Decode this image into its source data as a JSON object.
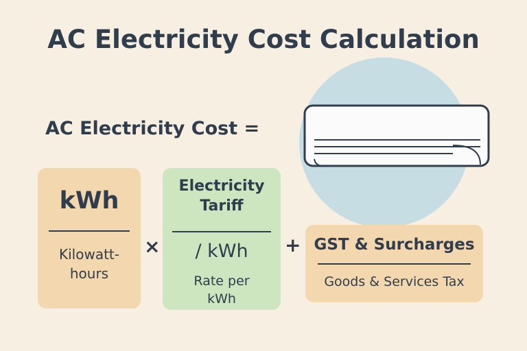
{
  "header": {
    "title": "AC Electricity Cost Calculation"
  },
  "formula": {
    "lhs": "AC Electricity Cost =",
    "terms": [
      {
        "symbol": "kWh",
        "description": "Kilowatt-hours"
      },
      {
        "label": "Electricity Tariff",
        "symbol": "/ kWh",
        "description": "Rate per kWh"
      },
      {
        "symbol": "GST & Surcharges",
        "description": "Goods & Services Tax"
      }
    ],
    "operators": [
      "×",
      "+"
    ]
  }
}
